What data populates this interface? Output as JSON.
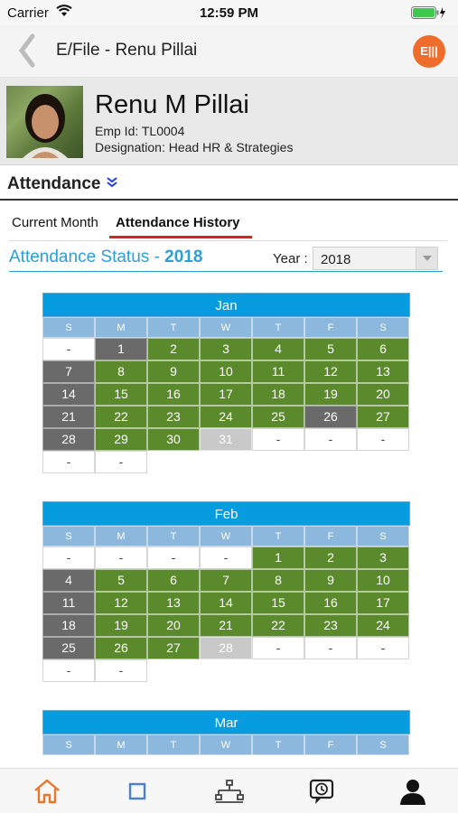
{
  "status_bar": {
    "carrier": "Carrier",
    "time": "12:59 PM"
  },
  "nav": {
    "title": "E/File - Renu Pillai",
    "action_label": "E|||"
  },
  "profile": {
    "name": "Renu M Pillai",
    "emp_id": "Emp Id: TL0004",
    "designation": "Designation: Head HR & Strategies"
  },
  "section": {
    "title": "Attendance"
  },
  "tabs": [
    {
      "label": "Current Month",
      "selected": false
    },
    {
      "label": "Attendance History",
      "selected": true
    }
  ],
  "attendance_status": {
    "label": "Attendance Status - ",
    "year": "2018"
  },
  "year_filter": {
    "label": "Year :",
    "value": "2018"
  },
  "weekday_labels": [
    "S",
    "M",
    "T",
    "W",
    "T",
    "F",
    "S"
  ],
  "legend_colors": {
    "present": "#5b8a2c",
    "holiday": "#6a6a6a",
    "future": "#c9c9c9",
    "empty": "#ffffff"
  },
  "months": [
    {
      "name": "Jan",
      "cells": [
        [
          "-",
          "w"
        ],
        [
          "1",
          "d"
        ],
        [
          "2",
          "g"
        ],
        [
          "3",
          "g"
        ],
        [
          "4",
          "g"
        ],
        [
          "5",
          "g"
        ],
        [
          "6",
          "g"
        ],
        [
          "7",
          "d"
        ],
        [
          "8",
          "g"
        ],
        [
          "9",
          "g"
        ],
        [
          "10",
          "g"
        ],
        [
          "11",
          "g"
        ],
        [
          "12",
          "g"
        ],
        [
          "13",
          "g"
        ],
        [
          "14",
          "d"
        ],
        [
          "15",
          "g"
        ],
        [
          "16",
          "g"
        ],
        [
          "17",
          "g"
        ],
        [
          "18",
          "g"
        ],
        [
          "19",
          "g"
        ],
        [
          "20",
          "g"
        ],
        [
          "21",
          "d"
        ],
        [
          "22",
          "g"
        ],
        [
          "23",
          "g"
        ],
        [
          "24",
          "g"
        ],
        [
          "25",
          "g"
        ],
        [
          "26",
          "d"
        ],
        [
          "27",
          "g"
        ],
        [
          "28",
          "d"
        ],
        [
          "29",
          "g"
        ],
        [
          "30",
          "g"
        ],
        [
          "31",
          "l"
        ],
        [
          "-",
          "w"
        ],
        [
          "-",
          "w"
        ],
        [
          "-",
          "w"
        ],
        [
          "-",
          "w"
        ],
        [
          "-",
          "w"
        ]
      ]
    },
    {
      "name": "Feb",
      "cells": [
        [
          "-",
          "w"
        ],
        [
          "-",
          "w"
        ],
        [
          "-",
          "w"
        ],
        [
          "-",
          "w"
        ],
        [
          "1",
          "g"
        ],
        [
          "2",
          "g"
        ],
        [
          "3",
          "g"
        ],
        [
          "4",
          "d"
        ],
        [
          "5",
          "g"
        ],
        [
          "6",
          "g"
        ],
        [
          "7",
          "g"
        ],
        [
          "8",
          "g"
        ],
        [
          "9",
          "g"
        ],
        [
          "10",
          "g"
        ],
        [
          "11",
          "d"
        ],
        [
          "12",
          "g"
        ],
        [
          "13",
          "g"
        ],
        [
          "14",
          "g"
        ],
        [
          "15",
          "g"
        ],
        [
          "16",
          "g"
        ],
        [
          "17",
          "g"
        ],
        [
          "18",
          "d"
        ],
        [
          "19",
          "g"
        ],
        [
          "20",
          "g"
        ],
        [
          "21",
          "g"
        ],
        [
          "22",
          "g"
        ],
        [
          "23",
          "g"
        ],
        [
          "24",
          "g"
        ],
        [
          "25",
          "d"
        ],
        [
          "26",
          "g"
        ],
        [
          "27",
          "g"
        ],
        [
          "28",
          "l"
        ],
        [
          "-",
          "w"
        ],
        [
          "-",
          "w"
        ],
        [
          "-",
          "w"
        ],
        [
          "-",
          "w"
        ],
        [
          "-",
          "w"
        ]
      ]
    },
    {
      "name": "Mar",
      "cells": []
    }
  ],
  "bottom_tabs": [
    "home-icon",
    "square-icon",
    "network-icon",
    "clock-chat-icon",
    "user-icon"
  ]
}
